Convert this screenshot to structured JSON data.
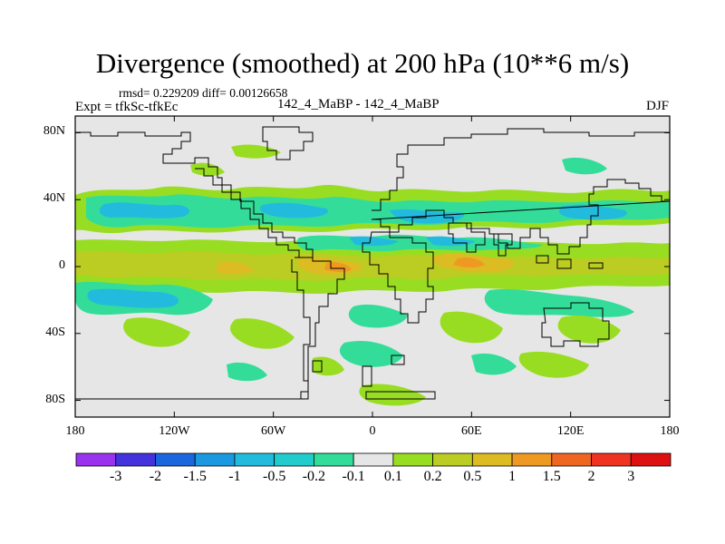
{
  "chart_data": {
    "type": "heatmap",
    "title": "Divergence (smoothed) at 200 hPa (10**6 m/s)",
    "stats_line": "rmsd= 0.229209 diff= 0.00126658",
    "expt_label": "Expt = tfkSc-tfkEc",
    "center_label": "142_4_MaBP - 142_4_MaBP",
    "season_label": "DJF",
    "x_ticks": [
      "180",
      "120W",
      "60W",
      "0",
      "60E",
      "120E",
      "180"
    ],
    "x_tick_values": [
      -180,
      -120,
      -60,
      0,
      60,
      120,
      180
    ],
    "y_ticks": [
      "80N",
      "40N",
      "0",
      "40S",
      "80S"
    ],
    "y_tick_values": [
      80,
      40,
      0,
      -40,
      -80
    ],
    "xlim": [
      -180,
      180
    ],
    "ylim": [
      -90,
      90
    ],
    "colorbar_levels": [
      "-3",
      "-2",
      "-1.5",
      "-1",
      "-0.5",
      "-0.2",
      "-0.1",
      "0.1",
      "0.2",
      "0.5",
      "1",
      "1.5",
      "2",
      "3"
    ],
    "colorbar_colors": [
      "#9933ee",
      "#4433dd",
      "#1a66dd",
      "#1a99e0",
      "#22bbdd",
      "#22cccc",
      "#33dd99",
      "#e6e6e6",
      "#99dd22",
      "#bbcc22",
      "#ddbb22",
      "#ee9922",
      "#ee6622",
      "#ee3322",
      "#dd1111"
    ],
    "anomaly_regions": [
      {
        "lon": -140,
        "lat": 15,
        "value": 0.3
      },
      {
        "lon": -160,
        "lat": 0,
        "value": 0.5
      },
      {
        "lon": -40,
        "lat": 0,
        "value": 0.8
      },
      {
        "lon": -20,
        "lat": -2,
        "value": 0.5
      },
      {
        "lon": 55,
        "lat": 2,
        "value": 0.7
      },
      {
        "lon": 10,
        "lat": -2,
        "value": 0.6
      },
      {
        "lon": 130,
        "lat": 0,
        "value": 0.3
      },
      {
        "lon": -120,
        "lat": 35,
        "value": -0.2
      },
      {
        "lon": -50,
        "lat": 40,
        "value": -0.2
      },
      {
        "lon": 20,
        "lat": 15,
        "value": -0.3
      },
      {
        "lon": 60,
        "lat": 15,
        "value": -0.2
      },
      {
        "lon": -140,
        "lat": -15,
        "value": -0.2
      },
      {
        "lon": 20,
        "lat": -25,
        "value": -0.2
      },
      {
        "lon": 100,
        "lat": -20,
        "value": -0.2
      },
      {
        "lon": 160,
        "lat": 40,
        "value": -0.2
      },
      {
        "lon": 0,
        "lat": -60,
        "value": -0.2
      }
    ]
  }
}
